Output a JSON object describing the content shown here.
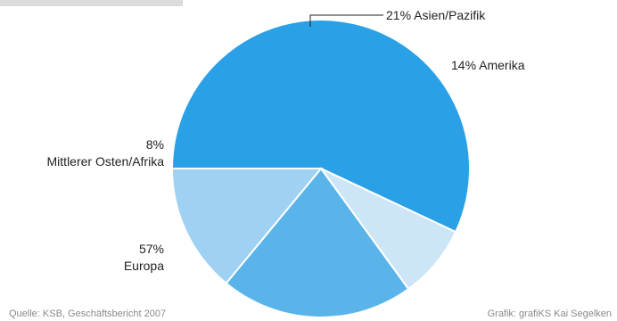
{
  "chart_data": {
    "type": "pie",
    "slices": [
      {
        "pct_label": "57%",
        "category": "Europa",
        "value": 57,
        "color": "#2aa0e6"
      },
      {
        "pct_label": "8%",
        "category": "Mittlerer Osten/Afrika",
        "value": 8,
        "color": "#cde6f7"
      },
      {
        "pct_label": "21%",
        "category": "Asien/Pazifik",
        "value": 21,
        "color": "#5ab4ea"
      },
      {
        "pct_label": "14%",
        "category": "Amerika",
        "value": 14,
        "color": "#9fd1f2"
      }
    ],
    "label_asia": "21% Asien/Pazifik",
    "label_amerika": "14% Amerika",
    "source_note": "Quelle: KSB, Geschäftsbericht 2007",
    "credit_note": "Grafik: grafiKS Kai Segelken"
  }
}
